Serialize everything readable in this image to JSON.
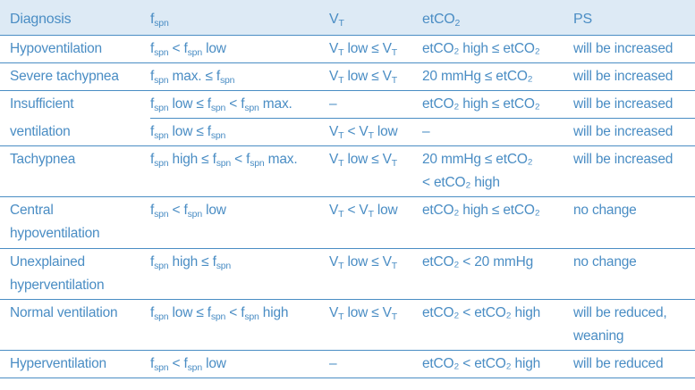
{
  "headers": {
    "diagnosis": "Diagnosis",
    "fspn": {
      "base": "f",
      "sub": "spn"
    },
    "vt": {
      "base": "V",
      "sub": "T"
    },
    "etco2": {
      "pre": "etCO",
      "sub": "2"
    },
    "ps": "PS"
  },
  "rows": [
    {
      "diagnosis": [
        "Hypoventilation"
      ],
      "fspn": [
        {
          "pre": "",
          "s1": "spn",
          "mid": " < f",
          "s2": "spn",
          "post": " low"
        }
      ],
      "vt": [
        {
          "pre": "",
          "s1": "T",
          "mid": " low ≤ V",
          "s2": "T",
          "post": ""
        }
      ],
      "etco2": [
        "etCO₂ high ≤ etCO₂"
      ],
      "ps": [
        "will be increased"
      ]
    },
    {
      "diagnosis": [
        "Severe tachypnea"
      ],
      "fspn": [
        {
          "pre": "",
          "s1": "spn",
          "mid": " max. ≤ f",
          "s2": "spn",
          "post": ""
        }
      ],
      "vt": [
        {
          "pre": "",
          "s1": "T",
          "mid": " low ≤ V",
          "s2": "T",
          "post": ""
        }
      ],
      "etco2": [
        "20 mmHg ≤ etCO₂"
      ],
      "ps": [
        "will be increased"
      ]
    },
    {
      "diagnosis": [
        "Insufficient",
        "ventilation"
      ],
      "sub_rows": [
        {
          "fspn": {
            "s1": "spn",
            "mid": " low ≤ f",
            "s2": "spn",
            "mid2": " < f",
            "s3": "spn",
            "post": " max."
          },
          "vt": "–",
          "etco2": "etCO₂ high ≤ etCO₂",
          "ps": "will be increased"
        },
        {
          "fspn": {
            "s1": "spn",
            "mid": " low ≤ f",
            "s2": "spn",
            "post": ""
          },
          "vt": {
            "s1": "T",
            "mid": " < V",
            "s2": "T",
            "post": " low"
          },
          "etco2": "–",
          "ps": "will be increased"
        }
      ]
    },
    {
      "diagnosis": [
        "Tachypnea"
      ],
      "fspn": [
        {
          "pre": "",
          "s1": "spn",
          "mid": " high ≤ f",
          "s2": "spn",
          "mid2": " < f",
          "s3": "spn",
          "post": " max."
        }
      ],
      "vt": [
        {
          "pre": "",
          "s1": "T",
          "mid": " low ≤ V",
          "s2": "T",
          "post": ""
        }
      ],
      "etco2": [
        "20 mmHg ≤ etCO₂",
        "< etCO₂ high"
      ],
      "ps": [
        "will be increased"
      ]
    },
    {
      "diagnosis": [
        "Central",
        "hypoventilation"
      ],
      "fspn": [
        {
          "pre": "",
          "s1": "spn",
          "mid": " < f",
          "s2": "spn",
          "post": " low"
        }
      ],
      "vt": [
        {
          "pre": "",
          "s1": "T",
          "mid": " < V",
          "s2": "T",
          "post": " low"
        }
      ],
      "etco2": [
        "etCO₂ high ≤ etCO₂"
      ],
      "ps": [
        "no change"
      ]
    },
    {
      "diagnosis": [
        "Unexplained",
        "hyperventilation"
      ],
      "fspn": [
        {
          "pre": "",
          "s1": "spn",
          "mid": " high ≤ f",
          "s2": "spn",
          "post": ""
        }
      ],
      "vt": [
        {
          "pre": "",
          "s1": "T",
          "mid": " low ≤ V",
          "s2": "T",
          "post": ""
        }
      ],
      "etco2": [
        "etCO₂ < 20 mmHg"
      ],
      "ps": [
        "no change"
      ]
    },
    {
      "diagnosis": [
        "Normal ventilation"
      ],
      "fspn": [
        {
          "pre": "",
          "s1": "spn",
          "mid": " low ≤ f",
          "s2": "spn",
          "mid2": " < f",
          "s3": "spn",
          "post": " high"
        }
      ],
      "vt": [
        {
          "pre": "",
          "s1": "T",
          "mid": " low ≤ V",
          "s2": "T",
          "post": ""
        }
      ],
      "etco2": [
        "etCO₂ < etCO₂ high"
      ],
      "ps": [
        "will be reduced,",
        "weaning"
      ]
    },
    {
      "diagnosis": [
        "Hyperventilation"
      ],
      "fspn": [
        {
          "pre": "",
          "s1": "spn",
          "mid": " < f",
          "s2": "spn",
          "post": " low"
        }
      ],
      "vt": [
        "–"
      ],
      "etco2": [
        "etCO₂ < etCO₂ high"
      ],
      "ps": [
        "will be reduced"
      ]
    }
  ]
}
